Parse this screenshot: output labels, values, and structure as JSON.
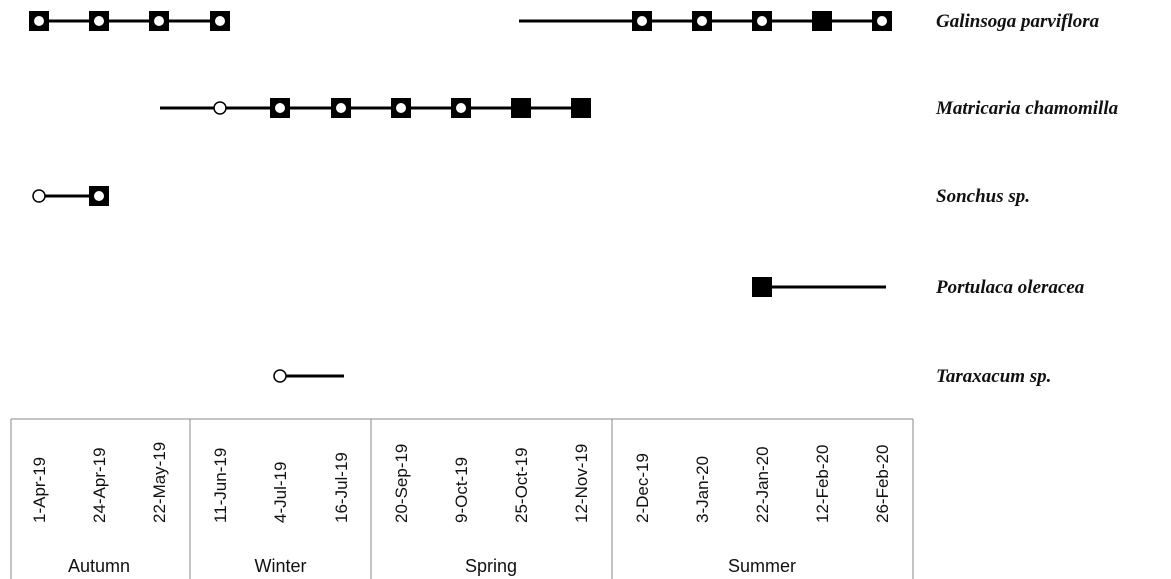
{
  "chart_data": {
    "type": "timeline",
    "dates": [
      "1-Apr-19",
      "24-Apr-19",
      "22-May-19",
      "11-Jun-19",
      "4-Jul-19",
      "16-Jul-19",
      "20-Sep-19",
      "9-Oct-19",
      "25-Oct-19",
      "12-Nov-19",
      "2-Dec-19",
      "3-Jan-20",
      "22-Jan-20",
      "12-Feb-20",
      "26-Feb-20"
    ],
    "seasons": [
      {
        "label": "Autumn",
        "from": 0,
        "to": 2
      },
      {
        "label": "Winter",
        "from": 3,
        "to": 5
      },
      {
        "label": "Spring",
        "from": 6,
        "to": 9
      },
      {
        "label": "Summer",
        "from": 10,
        "to": 14
      }
    ],
    "marker_types": [
      "open-circle",
      "square-with-dot",
      "filled-square"
    ],
    "series": [
      {
        "name": "Galinsoga parviflora",
        "segments": [
          [
            0,
            3
          ],
          [
            8,
            14
          ]
        ],
        "markers": [
          [
            0,
            "square-with-dot"
          ],
          [
            1,
            "square-with-dot"
          ],
          [
            2,
            "square-with-dot"
          ],
          [
            3,
            "square-with-dot"
          ],
          [
            10,
            "square-with-dot"
          ],
          [
            11,
            "square-with-dot"
          ],
          [
            12,
            "square-with-dot"
          ],
          [
            13,
            "filled-square"
          ],
          [
            14,
            "square-with-dot"
          ]
        ]
      },
      {
        "name": "Matricaria chamomilla",
        "segments": [
          [
            2,
            9
          ]
        ],
        "markers": [
          [
            3,
            "open-circle"
          ],
          [
            4,
            "square-with-dot"
          ],
          [
            5,
            "square-with-dot"
          ],
          [
            6,
            "square-with-dot"
          ],
          [
            7,
            "square-with-dot"
          ],
          [
            8,
            "filled-square"
          ],
          [
            9,
            "filled-square"
          ]
        ]
      },
      {
        "name": "Sonchus sp.",
        "segments": [
          [
            0,
            1
          ]
        ],
        "markers": [
          [
            0,
            "open-circle"
          ],
          [
            1,
            "square-with-dot"
          ]
        ]
      },
      {
        "name": "Portulaca oleracea",
        "segments": [
          [
            12,
            14
          ]
        ],
        "markers": [
          [
            12,
            "filled-square"
          ]
        ]
      },
      {
        "name": "Taraxacum sp.",
        "segments": [
          [
            4,
            5
          ]
        ],
        "markers": [
          [
            4,
            "open-circle"
          ]
        ]
      }
    ]
  }
}
